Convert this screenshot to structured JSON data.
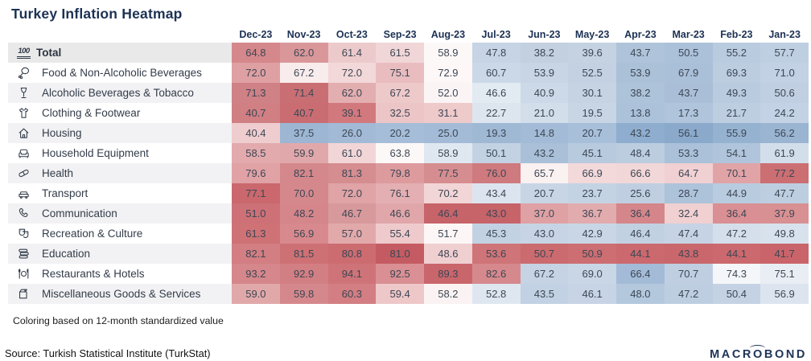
{
  "page": {
    "title": "Turkey Inflation Heatmap",
    "note": "Coloring based on 12-month standardized value",
    "source": "Source: Turkish Statistical Institute (TurkStat)",
    "logo_pre": "MACR",
    "logo_o": "O",
    "logo_post": "BOND"
  },
  "chart_data": {
    "type": "heatmap",
    "title": "Turkey Inflation Heatmap",
    "coloring_note": "Coloring based on 12-month standardized value",
    "source": "Source: Turkish Statistical Institute (TurkStat)",
    "legend": {
      "high_color": "#c55b62",
      "neutral_color": "#ffffff",
      "low_color": "#8aa9cb"
    },
    "columns": [
      "Dec-23",
      "Nov-23",
      "Oct-23",
      "Sep-23",
      "Aug-23",
      "Jul-23",
      "Jun-23",
      "May-23",
      "Apr-23",
      "Mar-23",
      "Feb-23",
      "Jan-23"
    ],
    "rows": [
      {
        "label": "Total",
        "icon": "hundred-points-icon",
        "bold": true,
        "values": [
          64.8,
          62.0,
          61.4,
          61.5,
          58.9,
          47.8,
          38.2,
          39.6,
          43.7,
          50.5,
          55.2,
          57.7
        ],
        "cell_colors": [
          "#d5888b",
          "#da979a",
          "#eccacb",
          "#f1d6d7",
          "#fdf8f8",
          "#c6d4e5",
          "#c3d0e0",
          "#c4d2e2",
          "#afc4da",
          "#abc1d9",
          "#b9cbdf",
          "#bfcfe2"
        ]
      },
      {
        "label": "Food & Non-Alcoholic Beverages",
        "icon": "drumstick-icon",
        "bold": false,
        "values": [
          72.0,
          67.2,
          72.0,
          75.1,
          72.9,
          60.7,
          53.9,
          52.5,
          53.9,
          67.9,
          69.3,
          71.0
        ],
        "cell_colors": [
          "#dfa0a3",
          "#f9ecec",
          "#f3d8d9",
          "#e9bdbf",
          "#fdf7f7",
          "#cbd8e7",
          "#c8d5e4",
          "#c3d1e2",
          "#abc1d8",
          "#aac0d8",
          "#bccde0",
          "#c2d1e3"
        ]
      },
      {
        "label": "Alcoholic Beverages & Tobacco",
        "icon": "goblet-icon",
        "bold": false,
        "values": [
          71.3,
          71.4,
          62.0,
          67.2,
          52.0,
          46.6,
          40.9,
          30.1,
          38.2,
          43.7,
          49.3,
          50.6
        ],
        "cell_colors": [
          "#d08185",
          "#c96f74",
          "#e3aeb0",
          "#eec9ca",
          "#fbf4f5",
          "#e2eaf2",
          "#ccd9e8",
          "#c5d3e3",
          "#adc3da",
          "#aabfd7",
          "#b9cbdf",
          "#c0cfe1"
        ]
      },
      {
        "label": "Clothing & Footwear",
        "icon": "tshirt-icon",
        "bold": false,
        "values": [
          40.7,
          40.7,
          39.1,
          32.5,
          31.1,
          22.7,
          21.0,
          19.5,
          13.8,
          17.3,
          21.7,
          24.2
        ],
        "cell_colors": [
          "#d07f83",
          "#c96d72",
          "#d2797e",
          "#ecc5c7",
          "#eecacb",
          "#dde6ef",
          "#d2deea",
          "#c8d5e5",
          "#abc2da",
          "#b0c5dc",
          "#bdcee1",
          "#c3d2e4"
        ]
      },
      {
        "label": "Housing",
        "icon": "house-icon",
        "bold": false,
        "values": [
          40.4,
          37.5,
          26.0,
          20.2,
          25.0,
          19.3,
          14.8,
          20.7,
          43.2,
          56.1,
          55.9,
          56.2
        ],
        "cell_colors": [
          "#efcdcf",
          "#9cb6d3",
          "#a2bad6",
          "#a5bdd8",
          "#a3bbd7",
          "#9fb8d4",
          "#a3bbd7",
          "#a8bfda",
          "#8fadce",
          "#8aa9cb",
          "#96b2d1",
          "#9ab5d2"
        ]
      },
      {
        "label": "Household Equipment",
        "icon": "sofa-icon",
        "bold": false,
        "values": [
          58.5,
          59.9,
          61.0,
          63.8,
          58.9,
          50.1,
          43.2,
          45.1,
          48.4,
          53.3,
          54.1,
          61.9
        ],
        "cell_colors": [
          "#e2aaad",
          "#e1a8ab",
          "#f2d6d7",
          "#fdf8f8",
          "#dfe8f1",
          "#c3d2e3",
          "#a9c0d8",
          "#b8cade",
          "#bccde0",
          "#aac1d9",
          "#b0c5db",
          "#d3deeb"
        ]
      },
      {
        "label": "Health",
        "icon": "pill-icon",
        "bold": false,
        "values": [
          79.6,
          82.1,
          81.3,
          79.8,
          77.5,
          76.0,
          65.7,
          66.9,
          66.6,
          64.7,
          70.1,
          77.2
        ],
        "cell_colors": [
          "#e0a2a5",
          "#d4888b",
          "#d68d90",
          "#dd9b9e",
          "#d68d90",
          "#cf7a7e",
          "#faf1f1",
          "#f3d9da",
          "#f2d7d8",
          "#f0d0d2",
          "#e0a4a7",
          "#cb6f73"
        ]
      },
      {
        "label": "Transport",
        "icon": "car-icon",
        "bold": false,
        "values": [
          77.1,
          70.0,
          72.0,
          76.1,
          70.2,
          43.4,
          20.7,
          23.7,
          25.6,
          28.7,
          44.9,
          47.7
        ],
        "cell_colors": [
          "#ca686d",
          "#d5888c",
          "#e0a3a6",
          "#e4afb2",
          "#f2d5d6",
          "#dce5ef",
          "#c8d5e5",
          "#c4d3e4",
          "#bfcfe1",
          "#adc3da",
          "#b9cbdf",
          "#bdcee1"
        ]
      },
      {
        "label": "Communication",
        "icon": "phone-icon",
        "bold": false,
        "values": [
          51.0,
          48.2,
          46.7,
          46.6,
          46.4,
          43.0,
          37.0,
          36.7,
          36.4,
          32.4,
          36.4,
          37.9
        ],
        "cell_colors": [
          "#cd7177",
          "#d5868a",
          "#d8999c",
          "#e0a6a9",
          "#c6646a",
          "#c6646a",
          "#dfa1a4",
          "#e2abad",
          "#d4868a",
          "#f0d0d1",
          "#d98f93",
          "#d89093"
        ]
      },
      {
        "label": "Recreation & Culture",
        "icon": "theater-masks-icon",
        "bold": false,
        "values": [
          61.3,
          56.9,
          57.0,
          55.4,
          51.7,
          45.3,
          43.0,
          42.9,
          46.4,
          47.4,
          47.2,
          49.8
        ],
        "cell_colors": [
          "#cf7276",
          "#d8898d",
          "#e2a9ab",
          "#eecacc",
          "#fdf6f6",
          "#c3d2e3",
          "#c7d4e5",
          "#c9d6e6",
          "#c2d1e2",
          "#c6d3e4",
          "#d4dfeb",
          "#d8e2ed"
        ]
      },
      {
        "label": "Education",
        "icon": "books-icon",
        "bold": false,
        "values": [
          82.1,
          81.5,
          80.8,
          81.0,
          48.6,
          53.6,
          50.7,
          50.9,
          44.1,
          43.8,
          44.1,
          41.7
        ],
        "cell_colors": [
          "#d27e82",
          "#ce7175",
          "#cc6c71",
          "#c55b62",
          "#f0cfd1",
          "#cf7478",
          "#cb6b6f",
          "#cc6e72",
          "#cb696e",
          "#ca676c",
          "#cb696e",
          "#c9656a"
        ]
      },
      {
        "label": "Restaurants & Hotels",
        "icon": "restaurant-icon",
        "bold": false,
        "values": [
          93.2,
          92.9,
          94.1,
          92.5,
          89.3,
          82.6,
          67.2,
          69.0,
          66.4,
          70.7,
          74.3,
          75.1
        ],
        "cell_colors": [
          "#d5878b",
          "#d27f83",
          "#ce7478",
          "#d98f93",
          "#c9666c",
          "#d6898d",
          "#c5d3e4",
          "#c9d6e6",
          "#a3bbd7",
          "#bfcfe1",
          "#f4f6f9",
          "#e9eef5"
        ]
      },
      {
        "label": "Miscellaneous Goods & Services",
        "icon": "package-icon",
        "bold": false,
        "values": [
          59.0,
          59.8,
          60.3,
          59.4,
          58.2,
          52.8,
          43.5,
          46.1,
          48.0,
          47.2,
          50.4,
          56.9
        ],
        "cell_colors": [
          "#e1a8aa",
          "#d5888c",
          "#d27e82",
          "#eec7c9",
          "#fbf3f3",
          "#dee7f0",
          "#c2d1e3",
          "#c7d4e5",
          "#b4c8dd",
          "#bdcee1",
          "#c4d2e4",
          "#dce5ef"
        ]
      }
    ]
  }
}
